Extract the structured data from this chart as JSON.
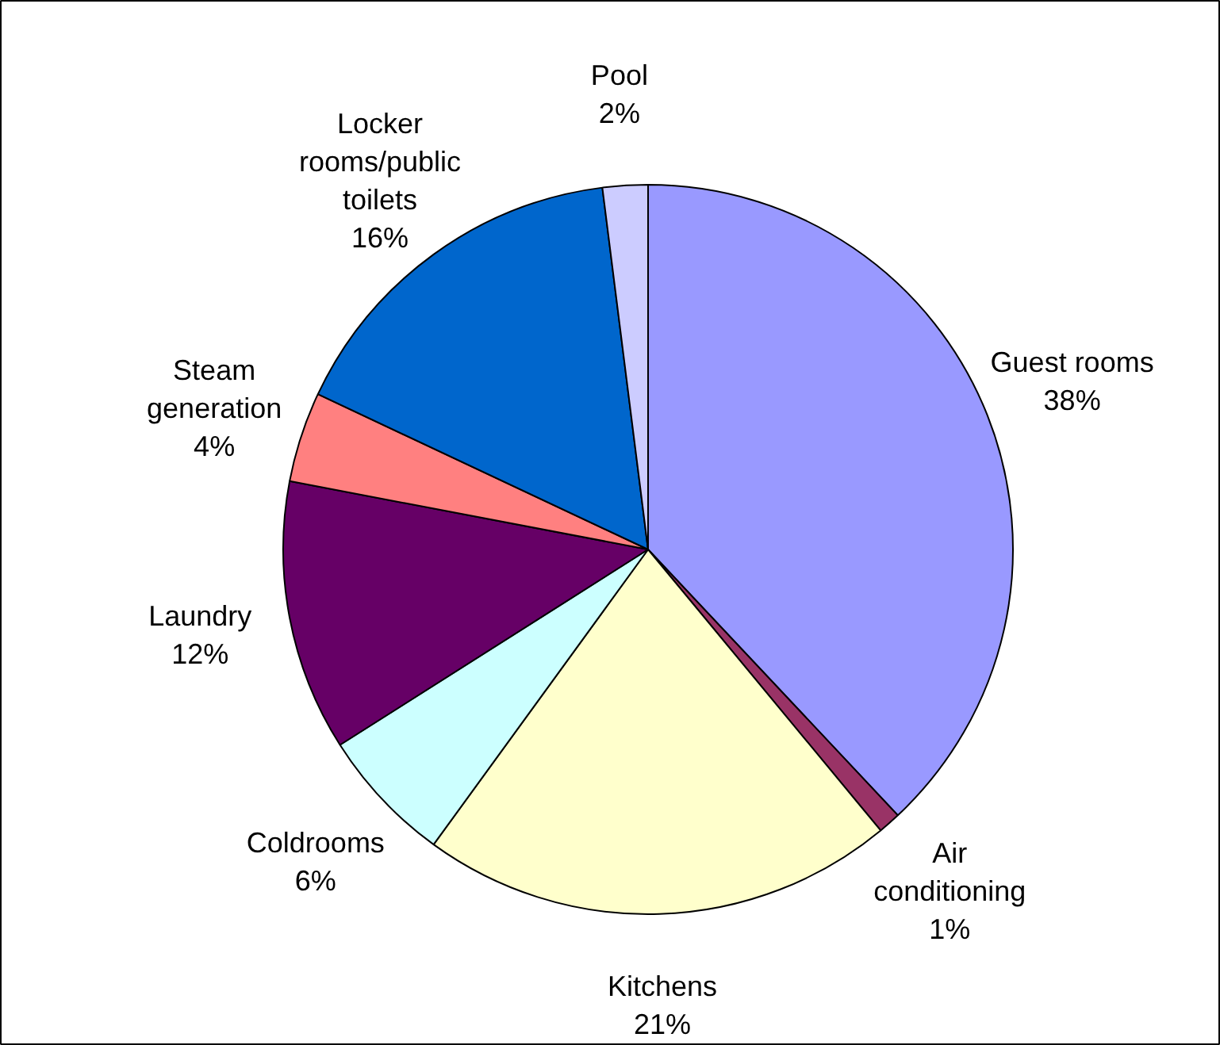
{
  "chart_data": {
    "type": "pie",
    "categories": [
      "Guest rooms",
      "Air conditioning",
      "Kitchens",
      "Coldrooms",
      "Laundry",
      "Steam generation",
      "Locker rooms/public toilets",
      "Pool"
    ],
    "values": [
      38,
      1,
      21,
      6,
      12,
      4,
      16,
      2
    ],
    "colors": [
      "#9999ff",
      "#993366",
      "#ffffcc",
      "#ccffff",
      "#660066",
      "#ff8080",
      "#0066cc",
      "#ccccff"
    ],
    "value_labels": [
      "38%",
      "1%",
      "21%",
      "6%",
      "12%",
      "4%",
      "16%",
      "2%"
    ]
  }
}
